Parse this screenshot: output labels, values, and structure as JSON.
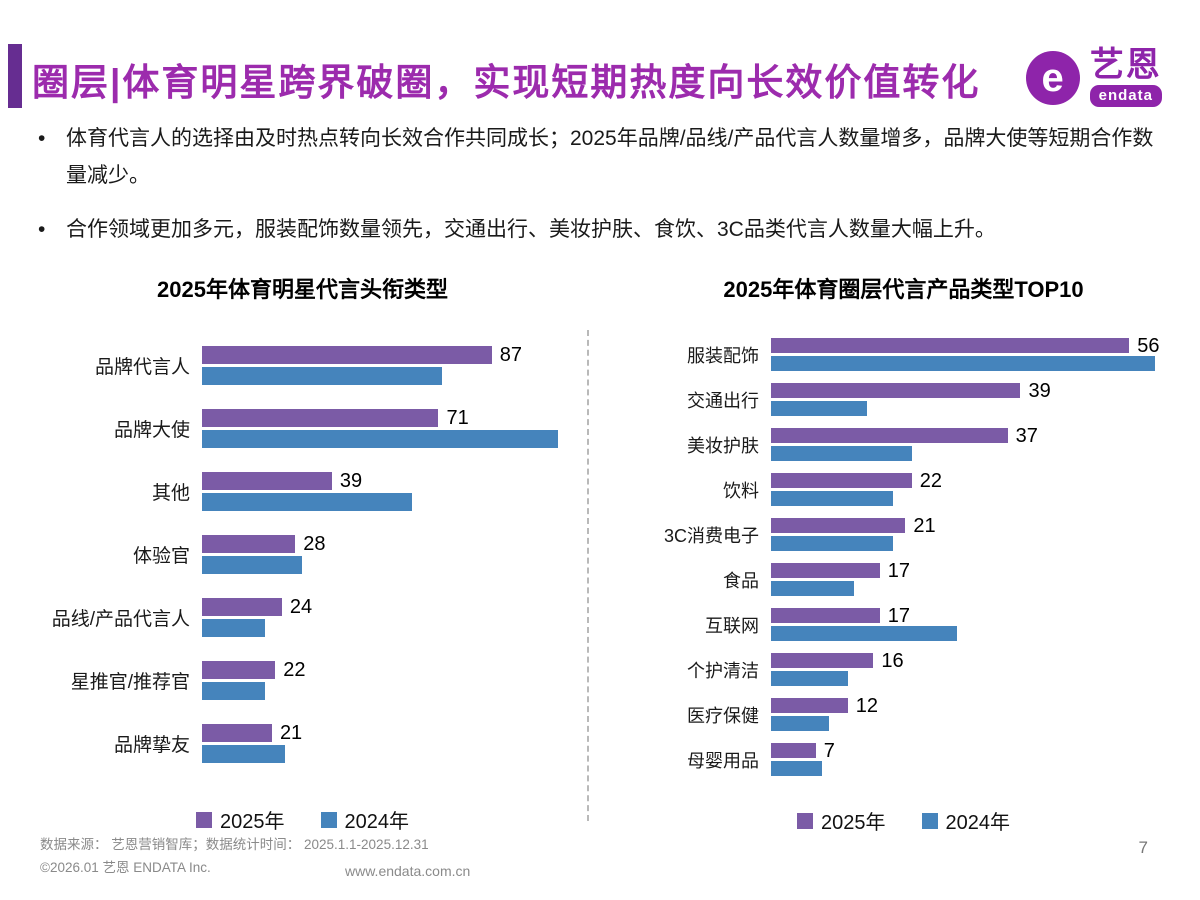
{
  "header": {
    "title": "圈层|体育明星跨界破圈，实现短期热度向长效价值转化",
    "logo": {
      "icon": "e",
      "name_cn": "艺恩",
      "name_en": "endata"
    }
  },
  "bullets": [
    "体育代言人的选择由及时热点转向长效合作共同成长；2025年品牌/品线/产品代言人数量增多，品牌大使等短期合作数量减少。",
    "合作领域更加多元，服装配饰数量领先，交通出行、美妆护肤、食饮、3C品类代言人数量大幅上升。"
  ],
  "colors": {
    "accent_purple": "#662D91",
    "title_purple": "#9C2BAD",
    "series_2025": "#7B5BA6",
    "series_2024": "#4584BC"
  },
  "chart_data": [
    {
      "type": "bar",
      "orientation": "horizontal",
      "title": "2025年体育明星代言头衔类型",
      "categories": [
        "品牌代言人",
        "品牌大使",
        "其他",
        "体验官",
        "品线/产品代言人",
        "星推官/推荐官",
        "品牌挚友"
      ],
      "series": [
        {
          "name": "2025年",
          "color": "#7B5BA6",
          "labeled": true,
          "values": [
            87,
            71,
            39,
            28,
            24,
            22,
            21
          ]
        },
        {
          "name": "2024年",
          "color": "#4584BC",
          "labeled": false,
          "values": [
            72,
            107,
            63,
            30,
            19,
            19,
            25
          ]
        }
      ],
      "xmax": 112,
      "legend_position": "bottom",
      "grid": false
    },
    {
      "type": "bar",
      "orientation": "horizontal",
      "title": "2025年体育圈层代言产品类型TOP10",
      "categories": [
        "服装配饰",
        "交通出行",
        "美妆护肤",
        "饮料",
        "3C消费电子",
        "食品",
        "互联网",
        "个护清洁",
        "医疗保健",
        "母婴用品"
      ],
      "series": [
        {
          "name": "2025年",
          "color": "#7B5BA6",
          "labeled": true,
          "values": [
            56,
            39,
            37,
            22,
            21,
            17,
            17,
            16,
            12,
            7
          ]
        },
        {
          "name": "2024年",
          "color": "#4584BC",
          "labeled": false,
          "values": [
            60,
            15,
            22,
            19,
            19,
            13,
            29,
            12,
            9,
            8
          ]
        }
      ],
      "xmax": 63,
      "legend_position": "bottom",
      "grid": false
    }
  ],
  "footer": {
    "source_line1": "数据来源： 艺恩营销智库；数据统计时间： 2025.1.1-2025.12.31",
    "source_line2": "©2026.01 艺恩 ENDATA Inc.",
    "website": "www.endata.com.cn",
    "page_number": "7"
  }
}
